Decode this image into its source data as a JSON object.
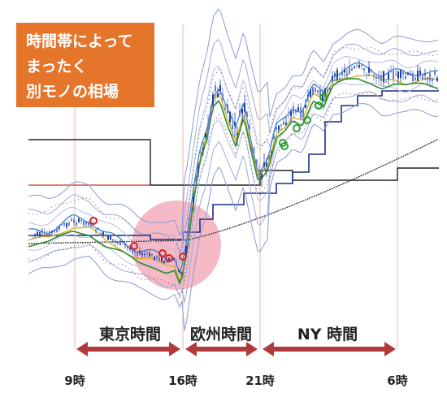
{
  "callout": {
    "lines": [
      "時間帯によって",
      "まったく",
      "別モノの相場"
    ],
    "color": "#e4752b"
  },
  "chart_data": {
    "type": "line",
    "title": "",
    "xlabel": "",
    "ylabel": "",
    "time_ticks": [
      "9時",
      "16時",
      "21時",
      "6時"
    ],
    "sessions": [
      {
        "label": "東京時間",
        "from": "9時",
        "to": "16時"
      },
      {
        "label": "欧州時間",
        "from": "16時",
        "to": "21時"
      },
      {
        "label": "NY 時間",
        "from": "21時",
        "to": "6時"
      }
    ],
    "highlight": {
      "at": "16時",
      "shape": "circle",
      "color": "#f2a3b3"
    },
    "arrow_color": "#b03a3a",
    "grid": false,
    "legend": "none"
  }
}
